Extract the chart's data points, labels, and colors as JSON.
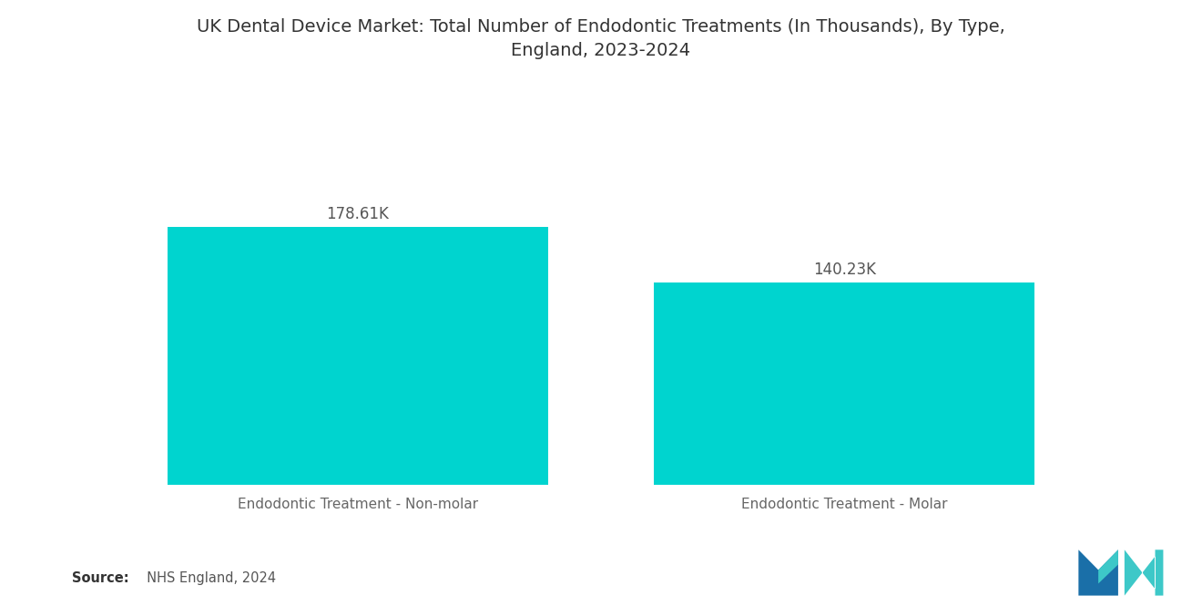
{
  "title_line1": "UK Dental Device Market: Total Number of Endodontic Treatments (In Thousands), By Type,",
  "title_line2": "England, 2023-2024",
  "categories": [
    "Endodontic Treatment - Non-molar",
    "Endodontic Treatment - Molar"
  ],
  "values": [
    178.61,
    140.23
  ],
  "labels": [
    "178.61K",
    "140.23K"
  ],
  "bar_color": "#00D4CF",
  "background_color": "#ffffff",
  "title_fontsize": 14,
  "label_fontsize": 12,
  "category_fontsize": 11,
  "source_bold": "Source:",
  "source_text": "  NHS England, 2024",
  "ylim": [
    0,
    260
  ],
  "x_positions": [
    0.27,
    0.73
  ],
  "bar_width": 0.36,
  "xlim": [
    0,
    1
  ]
}
